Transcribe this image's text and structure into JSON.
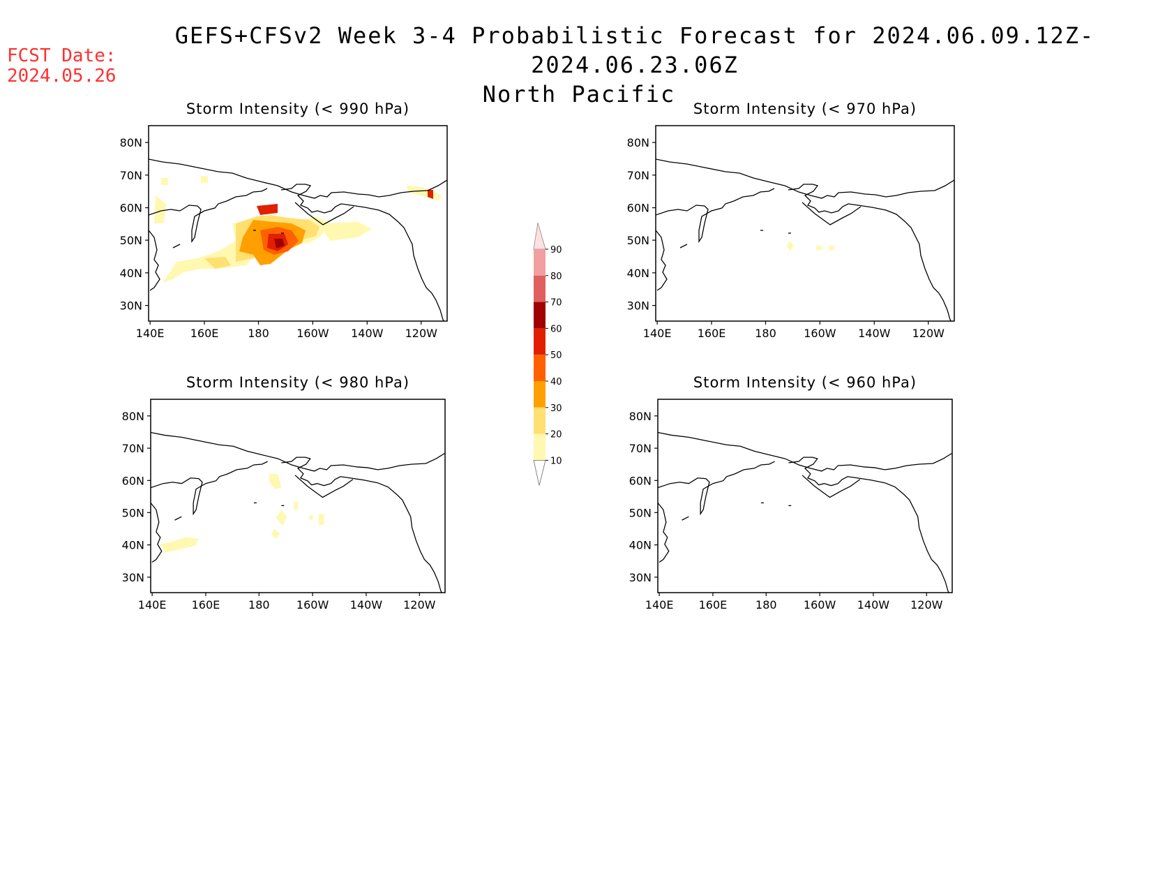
{
  "header": {
    "fcst_label": "FCST Date:",
    "fcst_date": "2024.05.26",
    "title": "GEFS+CFSv2 Week 3-4 Probabilistic Forecast for 2024.06.09.12Z-2024.06.23.06Z",
    "subtitle": "North Pacific"
  },
  "lat_ticks": [
    "80N",
    "70N",
    "60N",
    "50N",
    "40N",
    "30N"
  ],
  "lon_ticks": [
    "140E",
    "160E",
    "180",
    "160W",
    "140W",
    "120W"
  ],
  "panels": [
    {
      "id": "p990",
      "title": "Storm Intensity (< 990 hPa)"
    },
    {
      "id": "p970",
      "title": "Storm Intensity (< 970 hPa)"
    },
    {
      "id": "p980",
      "title": "Storm Intensity (< 980 hPa)"
    },
    {
      "id": "p960",
      "title": "Storm Intensity (< 960 hPa)"
    }
  ],
  "colorbar": {
    "levels": [
      "10",
      "20",
      "30",
      "40",
      "50",
      "60",
      "70",
      "80",
      "90"
    ],
    "colors": [
      "#fff8b0",
      "#ffe070",
      "#ffa000",
      "#ff6000",
      "#e02000",
      "#a00000",
      "#e06060",
      "#f0a0a0",
      "#ffe0e0"
    ]
  }
}
